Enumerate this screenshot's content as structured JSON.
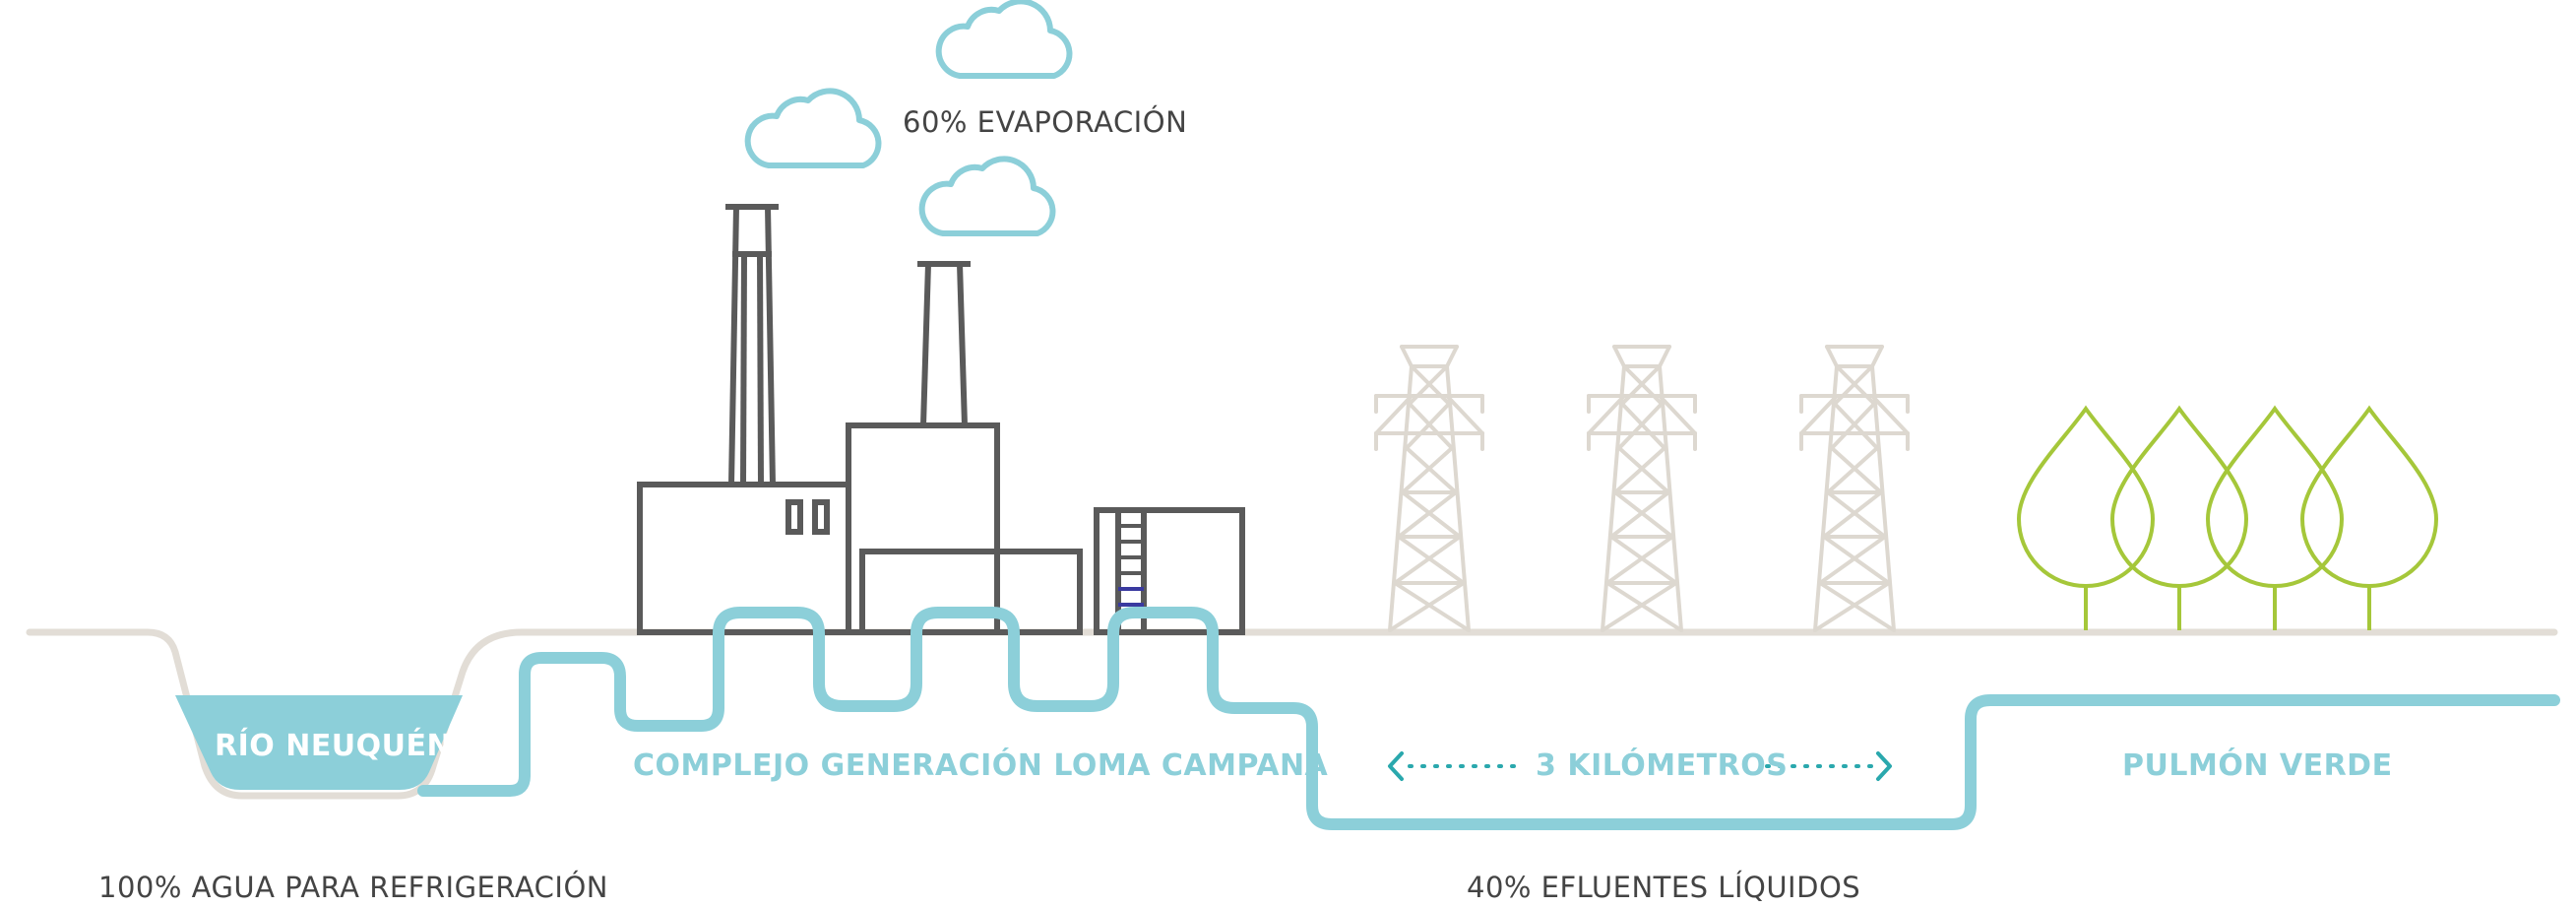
{
  "labels": {
    "evaporation": "60% EVAPORACIÓN",
    "river": "RÍO NEUQUÉN",
    "complex": "COMPLEJO GENERACIÓN LOMA CAMPANA",
    "distance": "3 KILÓMETROS",
    "green_lung": "PULMÓN VERDE",
    "cooling_water": "100% AGUA PARA REFRIGERACIÓN",
    "effluents": "40% EFLUENTES LÍQUIDOS"
  },
  "colors": {
    "water": "#8ccfd9",
    "ground": "#e2ddd6",
    "factory": "#5a5a5a",
    "tower": "#ddd8d0",
    "tree": "#a5c73a",
    "text": "#444444",
    "arrow": "#2aa8ad"
  },
  "icons": [
    "cloud-icon",
    "factory-icon",
    "chimney-icon",
    "ladder-icon",
    "transmission-tower-icon",
    "tree-icon",
    "arrow-left-icon",
    "arrow-right-icon"
  ]
}
